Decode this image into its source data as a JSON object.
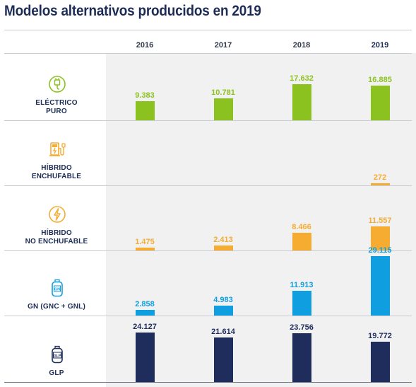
{
  "title": "Modelos alternativos producidos en 2019",
  "colors": {
    "electric": "#8cc21f",
    "hybrid": "#f5ac31",
    "gas": "#0f9ee0",
    "glp": "#1e2d5c",
    "label_electric": "#8cc21f",
    "label_hybrid": "#f5ac31",
    "label_gas": "#0f9ee0",
    "label_glp": "#1e2d5c"
  },
  "chart_data": {
    "type": "bar",
    "title": "Modelos alternativos producidos en 2019",
    "categories": [
      "2016",
      "2017",
      "2018",
      "2019"
    ],
    "xlabel": "",
    "ylabel": "",
    "grid": false,
    "legend": "none",
    "series": [
      {
        "name": "ELÉCTRICO PURO",
        "label_lines": [
          "ELÉCTRICO",
          "PURO"
        ],
        "icon": "plug-icon",
        "color_key": "electric",
        "values": [
          9383,
          10781,
          17632,
          16885
        ],
        "value_labels": [
          "9.383",
          "10.781",
          "17.632",
          "16.885"
        ]
      },
      {
        "name": "HÍBRIDO ENCHUFABLE",
        "label_lines": [
          "HÍBRIDO",
          "ENCHUFABLE"
        ],
        "icon": "charging-station-icon",
        "color_key": "hybrid",
        "values": [
          null,
          null,
          null,
          272
        ],
        "value_labels": [
          "",
          "",
          "",
          "272"
        ]
      },
      {
        "name": "HÍBRIDO NO ENCHUFABLE",
        "label_lines": [
          "HÍBRIDO",
          "NO ENCHUFABLE"
        ],
        "icon": "lightning-icon",
        "color_key": "hybrid",
        "values": [
          1475,
          2413,
          8466,
          11557
        ],
        "value_labels": [
          "1.475",
          "2.413",
          "8.466",
          "11.557"
        ]
      },
      {
        "name": "GN (GNC + GNL)",
        "label_lines": [
          "GN (GNC + GNL)"
        ],
        "icon": "gas-cylinder-gn-icon",
        "icon_text": "GN",
        "color_key": "gas",
        "values": [
          2858,
          4983,
          11913,
          29115
        ],
        "value_labels": [
          "2.858",
          "4.983",
          "11.913",
          "29.115"
        ]
      },
      {
        "name": "GLP",
        "label_lines": [
          "GLP"
        ],
        "icon": "gas-cylinder-glp-icon",
        "icon_text": "GLP",
        "color_key": "glp",
        "values": [
          24127,
          21614,
          23756,
          19772
        ],
        "value_labels": [
          "24.127",
          "21.614",
          "23.756",
          "19.772"
        ]
      }
    ]
  }
}
